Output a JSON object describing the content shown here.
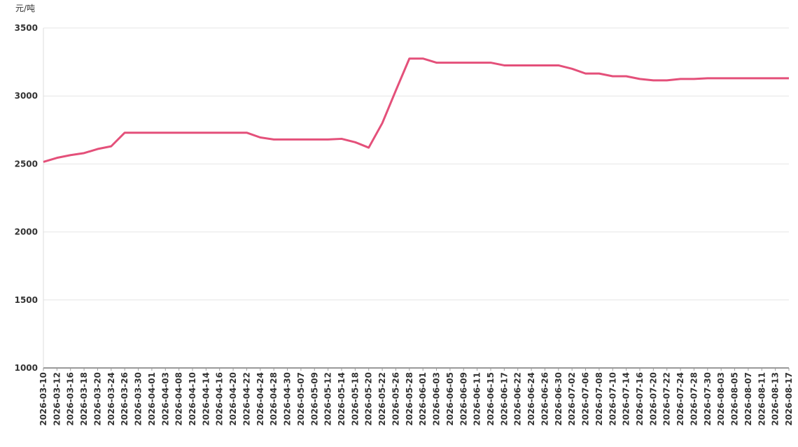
{
  "chart_data": {
    "type": "line",
    "y_unit": "元/吨",
    "categories": [
      "2026-03-10",
      "2026-03-12",
      "2026-03-16",
      "2026-03-18",
      "2026-03-20",
      "2026-03-24",
      "2026-03-26",
      "2026-03-30",
      "2026-04-01",
      "2026-04-03",
      "2026-04-08",
      "2026-04-10",
      "2026-04-14",
      "2026-04-16",
      "2026-04-20",
      "2026-04-22",
      "2026-04-24",
      "2026-04-28",
      "2026-04-30",
      "2026-05-07",
      "2026-05-09",
      "2026-05-12",
      "2026-05-14",
      "2026-05-18",
      "2026-05-20",
      "2026-05-22",
      "2026-05-26",
      "2026-05-28",
      "2026-06-01",
      "2026-06-03",
      "2026-06-05",
      "2026-06-09",
      "2026-06-11",
      "2026-06-15",
      "2026-06-17",
      "2026-06-22",
      "2026-06-24",
      "2026-06-26",
      "2026-06-30",
      "2026-07-02",
      "2026-07-06",
      "2026-07-08",
      "2026-07-10",
      "2026-07-14",
      "2026-07-16",
      "2026-07-20",
      "2026-07-22",
      "2026-07-24",
      "2026-07-28",
      "2026-07-30",
      "2026-08-03",
      "2026-08-05",
      "2026-08-07",
      "2026-08-11",
      "2026-08-13",
      "2026-08-17"
    ],
    "series": [
      {
        "color": "#e4507a",
        "values": [
          2515,
          2545,
          2565,
          2580,
          2610,
          2630,
          2730,
          2730,
          2730,
          2730,
          2730,
          2730,
          2730,
          2730,
          2730,
          2730,
          2695,
          2680,
          2680,
          2680,
          2680,
          2680,
          2685,
          2660,
          2620,
          2800,
          3040,
          3275,
          3275,
          3245,
          3245,
          3245,
          3245,
          3245,
          3225,
          3225,
          3225,
          3225,
          3225,
          3200,
          3165,
          3165,
          3145,
          3145,
          3125,
          3115,
          3115,
          3125,
          3125,
          3130,
          3130,
          3130,
          3130,
          3130,
          3130,
          3130
        ]
      }
    ],
    "ylim": [
      1000,
      3500
    ],
    "yticks": [
      1000,
      1500,
      2000,
      2500,
      3000,
      3500
    ],
    "grid": true
  }
}
